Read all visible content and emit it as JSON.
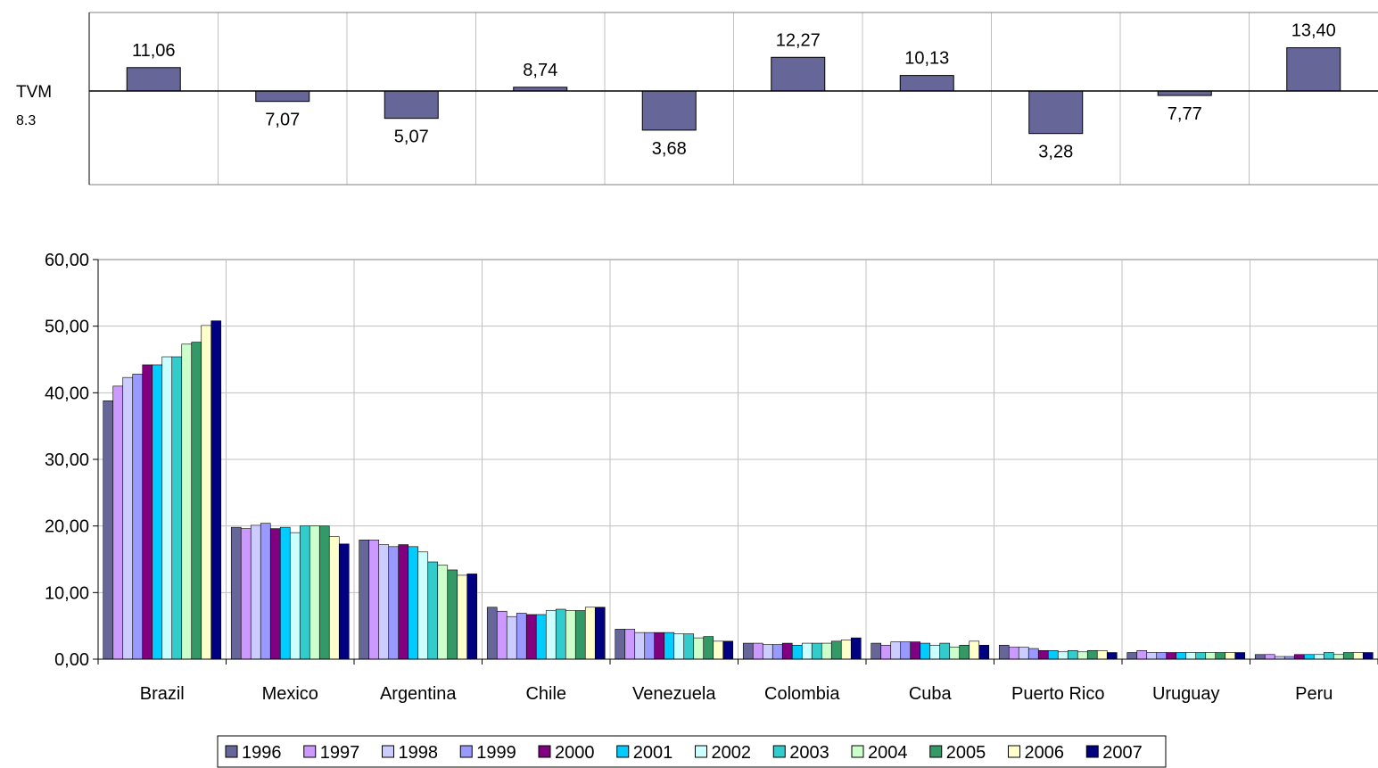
{
  "top_chart": {
    "type": "bar",
    "baseline_label": "TVM",
    "baseline_value": "8.3",
    "baseline": 8.3,
    "categories": [
      "Brazil",
      "Mexico",
      "Argentina",
      "Chile",
      "Venezuela",
      "Colombia",
      "Cuba",
      "Puerto Rico",
      "Uruguay",
      "Peru"
    ],
    "values": [
      11.06,
      7.07,
      5.07,
      8.74,
      3.68,
      12.27,
      10.13,
      3.28,
      7.77,
      13.4
    ],
    "labels": [
      "11,06",
      "7,07",
      "5,07",
      "8,74",
      "3,68",
      "12,27",
      "10,13",
      "3,28",
      "7,77",
      "13,40"
    ],
    "bar_color": "#666699"
  },
  "chart_data": {
    "type": "bar",
    "categories": [
      "Brazil",
      "Mexico",
      "Argentina",
      "Chile",
      "Venezuela",
      "Colombia",
      "Cuba",
      "Puerto Rico",
      "Uruguay",
      "Peru"
    ],
    "ylim": [
      0,
      60
    ],
    "yticks": [
      "0,00",
      "10,00",
      "20,00",
      "30,00",
      "40,00",
      "50,00",
      "60,00"
    ],
    "grid": true,
    "legend_position": "bottom",
    "series": [
      {
        "name": "1996",
        "color": "#666699",
        "values": [
          38.8,
          19.8,
          17.9,
          7.8,
          4.5,
          2.4,
          2.4,
          2.1,
          1.0,
          0.7
        ]
      },
      {
        "name": "1997",
        "color": "#CC99FF",
        "values": [
          41.0,
          19.6,
          17.9,
          7.2,
          4.5,
          2.4,
          2.1,
          1.8,
          1.3,
          0.7
        ]
      },
      {
        "name": "1998",
        "color": "#CCCCFF",
        "values": [
          42.3,
          20.1,
          17.2,
          6.4,
          4.0,
          2.2,
          2.6,
          1.8,
          1.0,
          0.4
        ]
      },
      {
        "name": "1999",
        "color": "#9999FF",
        "values": [
          42.8,
          20.4,
          16.9,
          6.9,
          4.0,
          2.2,
          2.6,
          1.6,
          1.0,
          0.4
        ]
      },
      {
        "name": "2000",
        "color": "#800080",
        "values": [
          44.2,
          19.6,
          17.2,
          6.7,
          4.0,
          2.4,
          2.6,
          1.3,
          1.0,
          0.7
        ]
      },
      {
        "name": "2001",
        "color": "#00CCFF",
        "values": [
          44.2,
          19.8,
          16.9,
          6.7,
          4.0,
          2.1,
          2.4,
          1.3,
          1.0,
          0.7
        ]
      },
      {
        "name": "2002",
        "color": "#CCFFFF",
        "values": [
          45.4,
          19.0,
          16.1,
          7.3,
          3.8,
          2.4,
          2.1,
          1.1,
          1.0,
          0.7
        ]
      },
      {
        "name": "2003",
        "color": "#33CCCC",
        "values": [
          45.4,
          20.0,
          14.6,
          7.5,
          3.8,
          2.4,
          2.4,
          1.3,
          1.0,
          1.0
        ]
      },
      {
        "name": "2004",
        "color": "#CCFFCC",
        "values": [
          47.3,
          20.0,
          14.1,
          7.3,
          3.2,
          2.4,
          1.8,
          1.1,
          1.0,
          0.7
        ]
      },
      {
        "name": "2005",
        "color": "#339966",
        "values": [
          47.6,
          20.0,
          13.4,
          7.3,
          3.4,
          2.7,
          2.1,
          1.3,
          1.0,
          1.0
        ]
      },
      {
        "name": "2006",
        "color": "#FFFFCC",
        "values": [
          50.1,
          18.4,
          12.6,
          7.8,
          2.7,
          2.9,
          2.7,
          1.3,
          1.0,
          1.0
        ]
      },
      {
        "name": "2007",
        "color": "#000080",
        "values": [
          50.8,
          17.3,
          12.8,
          7.8,
          2.7,
          3.2,
          2.1,
          1.0,
          1.0,
          1.0
        ]
      }
    ]
  }
}
